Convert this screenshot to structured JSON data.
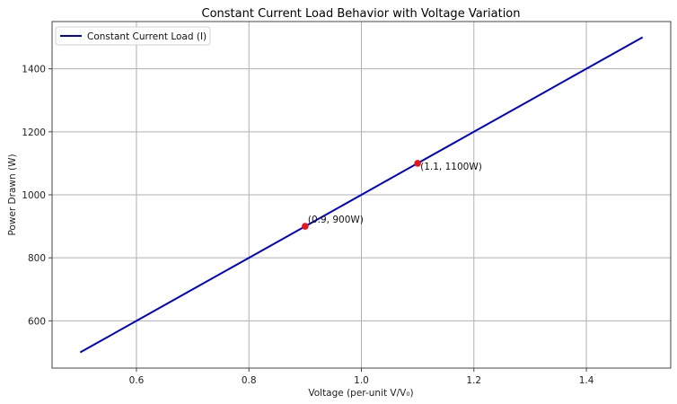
{
  "chart_data": {
    "type": "line",
    "title": "Constant Current Load Behavior with Voltage Variation",
    "xlabel": "Voltage (per-unit V/V₀)",
    "ylabel": "Power Drawn (W)",
    "xlim": [
      0.45,
      1.55
    ],
    "ylim": [
      450,
      1550
    ],
    "xticks": [
      0.6,
      0.8,
      1.0,
      1.2,
      1.4
    ],
    "xtick_labels": [
      "0.6",
      "0.8",
      "1.0",
      "1.2",
      "1.4"
    ],
    "yticks": [
      600,
      800,
      1000,
      1200,
      1400
    ],
    "ytick_labels": [
      "600",
      "800",
      "1000",
      "1200",
      "1400"
    ],
    "grid": true,
    "legend_position": "upper left",
    "series": [
      {
        "name": "Constant Current Load (I)",
        "color": "#0000cc",
        "x": [
          0.5,
          0.6,
          0.7,
          0.8,
          0.9,
          1.0,
          1.1,
          1.2,
          1.3,
          1.4,
          1.5
        ],
        "y": [
          500,
          600,
          700,
          800,
          900,
          1000,
          1100,
          1200,
          1300,
          1400,
          1500
        ]
      }
    ],
    "markers": [
      {
        "x": 0.9,
        "y": 900,
        "color": "#e8141c",
        "label": "(0.9, 900W)"
      },
      {
        "x": 1.1,
        "y": 1100,
        "color": "#e8141c",
        "label": "(1.1, 1100W)"
      }
    ]
  }
}
